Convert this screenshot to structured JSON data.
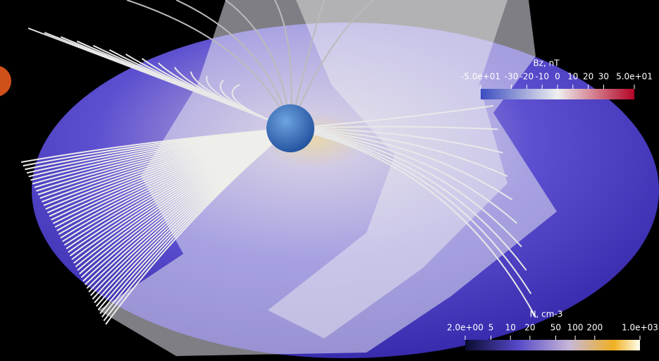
{
  "colorbars": [
    {
      "title": "Bz, nT",
      "scale": "linear",
      "lim": [
        -50,
        50
      ],
      "ticks": [
        {
          "value": -50,
          "label": "-5.0e+01"
        },
        {
          "value": -30,
          "label": "-30"
        },
        {
          "value": -20,
          "label": "-20"
        },
        {
          "value": -10,
          "label": "-10"
        },
        {
          "value": 0,
          "label": "0"
        },
        {
          "value": 10,
          "label": "10"
        },
        {
          "value": 20,
          "label": "20"
        },
        {
          "value": 30,
          "label": "30"
        },
        {
          "value": 50,
          "label": "5.0e+01"
        }
      ]
    },
    {
      "title": "N, cm-3",
      "scale": "log",
      "lim": [
        2,
        1000
      ],
      "ticks": [
        {
          "value": 2,
          "label": "2.0e+00"
        },
        {
          "value": 5,
          "label": "5"
        },
        {
          "value": 10,
          "label": "10"
        },
        {
          "value": 20,
          "label": "20"
        },
        {
          "value": 50,
          "label": "50"
        },
        {
          "value": 100,
          "label": "100"
        },
        {
          "value": 200,
          "label": "200"
        },
        {
          "value": 1000,
          "label": "1.0e+03"
        }
      ]
    }
  ]
}
